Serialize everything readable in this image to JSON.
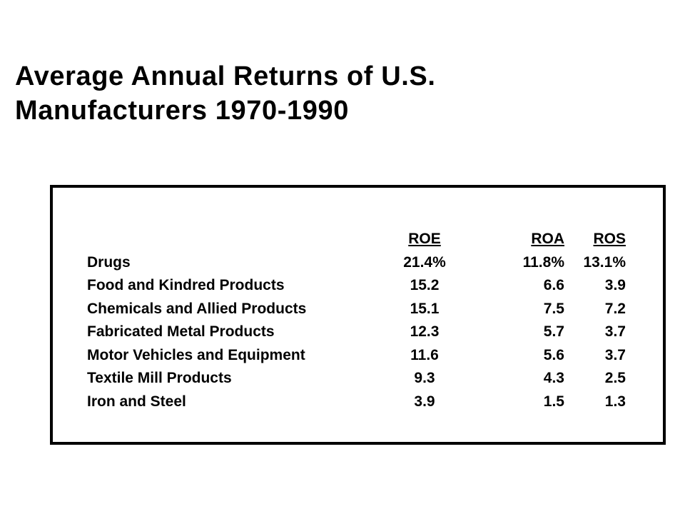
{
  "title": {
    "line1": "Average Annual Returns of U.S.",
    "line2": "Manufacturers 1970-1990"
  },
  "table": {
    "headers": [
      "",
      "ROE",
      "ROA",
      "ROS"
    ],
    "rows": [
      [
        "Drugs",
        "21.4%",
        "11.8%",
        "13.1%"
      ],
      [
        "Food and Kindred Products",
        "15.2",
        "6.6",
        "3.9"
      ],
      [
        "Chemicals and Allied Products",
        "15.1",
        "7.5",
        "7.2"
      ],
      [
        "Fabricated Metal Products",
        "12.3",
        "5.7",
        "3.7"
      ],
      [
        "Motor Vehicles and Equipment",
        "11.6",
        "5.6",
        "3.7"
      ],
      [
        "Textile Mill Products",
        "9.3",
        "4.3",
        "2.5"
      ],
      [
        "Iron and Steel",
        "3.9",
        "1.5",
        "1.3"
      ]
    ]
  }
}
